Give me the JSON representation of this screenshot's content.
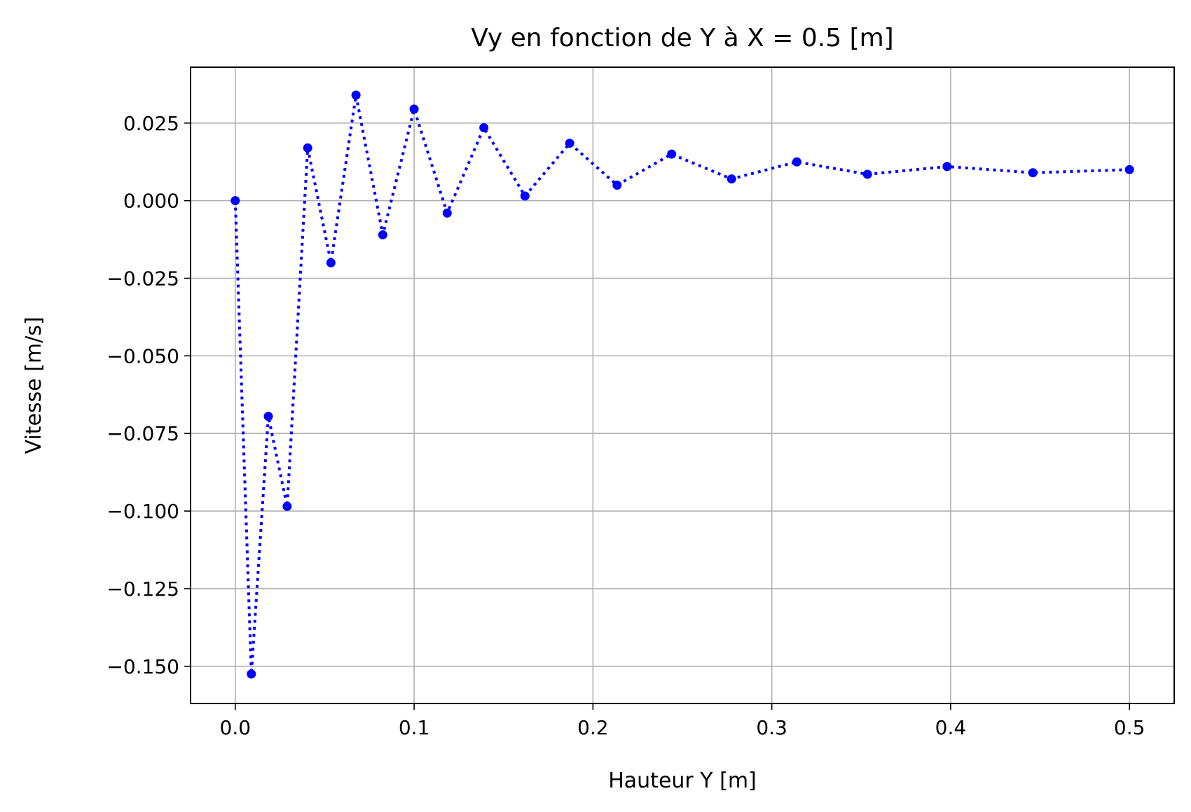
{
  "chart_data": {
    "type": "line",
    "title": "Vy en fonction de Y à X = 0.5 [m]",
    "xlabel": "Hauteur Y [m]",
    "ylabel": "Vitesse [m/s]",
    "xlim": [
      -0.025,
      0.525
    ],
    "ylim": [
      -0.162,
      0.043
    ],
    "xticks": [
      0.0,
      0.1,
      0.2,
      0.3,
      0.4,
      0.5
    ],
    "xtick_labels": [
      "0.0",
      "0.1",
      "0.2",
      "0.3",
      "0.4",
      "0.5"
    ],
    "yticks": [
      0.025,
      0.0,
      -0.025,
      -0.05,
      -0.075,
      -0.1,
      -0.125,
      -0.15
    ],
    "ytick_labels": [
      "0.025",
      "0.000",
      "−0.025",
      "−0.050",
      "−0.075",
      "−0.100",
      "−0.125",
      "−0.150"
    ],
    "grid": true,
    "series": [
      {
        "color": "#0000ff",
        "line_style": "dotted",
        "marker": "circle",
        "x": [
          0.0,
          0.009,
          0.0185,
          0.029,
          0.0405,
          0.0535,
          0.0675,
          0.0825,
          0.1,
          0.1185,
          0.139,
          0.162,
          0.187,
          0.2135,
          0.244,
          0.2775,
          0.314,
          0.3535,
          0.398,
          0.446,
          0.5
        ],
        "y": [
          0.0,
          -0.1525,
          -0.0695,
          -0.0985,
          0.017,
          -0.02,
          0.034,
          -0.011,
          0.0295,
          -0.004,
          0.0235,
          0.0015,
          0.0185,
          0.005,
          0.015,
          0.007,
          0.0125,
          0.0085,
          0.011,
          0.009,
          0.01
        ]
      }
    ]
  }
}
